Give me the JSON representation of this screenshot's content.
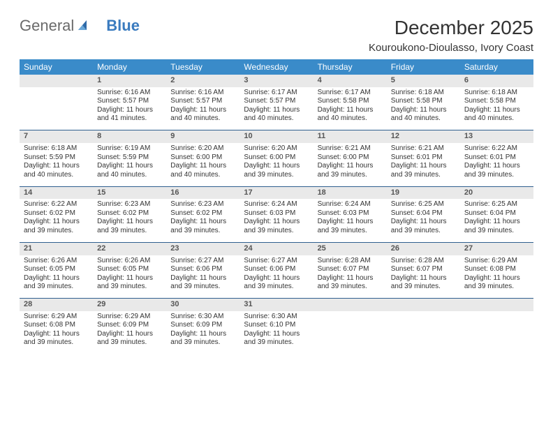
{
  "logo": {
    "text1": "General",
    "text2": "Blue"
  },
  "title": "December 2025",
  "location": "Kouroukono-Dioulasso, Ivory Coast",
  "colors": {
    "header_bg": "#3a8bc9",
    "header_text": "#ffffff",
    "daynum_bg": "#e9e9e9",
    "daynum_text": "#555555",
    "cell_text": "#333333",
    "rule": "#2f5f8f",
    "logo_gray": "#6a6a6a",
    "logo_blue": "#3a7bbf"
  },
  "typography": {
    "title_fontsize": 28,
    "location_fontsize": 15,
    "dayhead_fontsize": 12,
    "daynum_fontsize": 11,
    "detail_fontsize": 10
  },
  "day_headers": [
    "Sunday",
    "Monday",
    "Tuesday",
    "Wednesday",
    "Thursday",
    "Friday",
    "Saturday"
  ],
  "weeks": [
    [
      null,
      {
        "n": "1",
        "sunrise": "6:16 AM",
        "sunset": "5:57 PM",
        "daylight": "11 hours and 41 minutes."
      },
      {
        "n": "2",
        "sunrise": "6:16 AM",
        "sunset": "5:57 PM",
        "daylight": "11 hours and 40 minutes."
      },
      {
        "n": "3",
        "sunrise": "6:17 AM",
        "sunset": "5:57 PM",
        "daylight": "11 hours and 40 minutes."
      },
      {
        "n": "4",
        "sunrise": "6:17 AM",
        "sunset": "5:58 PM",
        "daylight": "11 hours and 40 minutes."
      },
      {
        "n": "5",
        "sunrise": "6:18 AM",
        "sunset": "5:58 PM",
        "daylight": "11 hours and 40 minutes."
      },
      {
        "n": "6",
        "sunrise": "6:18 AM",
        "sunset": "5:58 PM",
        "daylight": "11 hours and 40 minutes."
      }
    ],
    [
      {
        "n": "7",
        "sunrise": "6:18 AM",
        "sunset": "5:59 PM",
        "daylight": "11 hours and 40 minutes."
      },
      {
        "n": "8",
        "sunrise": "6:19 AM",
        "sunset": "5:59 PM",
        "daylight": "11 hours and 40 minutes."
      },
      {
        "n": "9",
        "sunrise": "6:20 AM",
        "sunset": "6:00 PM",
        "daylight": "11 hours and 40 minutes."
      },
      {
        "n": "10",
        "sunrise": "6:20 AM",
        "sunset": "6:00 PM",
        "daylight": "11 hours and 39 minutes."
      },
      {
        "n": "11",
        "sunrise": "6:21 AM",
        "sunset": "6:00 PM",
        "daylight": "11 hours and 39 minutes."
      },
      {
        "n": "12",
        "sunrise": "6:21 AM",
        "sunset": "6:01 PM",
        "daylight": "11 hours and 39 minutes."
      },
      {
        "n": "13",
        "sunrise": "6:22 AM",
        "sunset": "6:01 PM",
        "daylight": "11 hours and 39 minutes."
      }
    ],
    [
      {
        "n": "14",
        "sunrise": "6:22 AM",
        "sunset": "6:02 PM",
        "daylight": "11 hours and 39 minutes."
      },
      {
        "n": "15",
        "sunrise": "6:23 AM",
        "sunset": "6:02 PM",
        "daylight": "11 hours and 39 minutes."
      },
      {
        "n": "16",
        "sunrise": "6:23 AM",
        "sunset": "6:02 PM",
        "daylight": "11 hours and 39 minutes."
      },
      {
        "n": "17",
        "sunrise": "6:24 AM",
        "sunset": "6:03 PM",
        "daylight": "11 hours and 39 minutes."
      },
      {
        "n": "18",
        "sunrise": "6:24 AM",
        "sunset": "6:03 PM",
        "daylight": "11 hours and 39 minutes."
      },
      {
        "n": "19",
        "sunrise": "6:25 AM",
        "sunset": "6:04 PM",
        "daylight": "11 hours and 39 minutes."
      },
      {
        "n": "20",
        "sunrise": "6:25 AM",
        "sunset": "6:04 PM",
        "daylight": "11 hours and 39 minutes."
      }
    ],
    [
      {
        "n": "21",
        "sunrise": "6:26 AM",
        "sunset": "6:05 PM",
        "daylight": "11 hours and 39 minutes."
      },
      {
        "n": "22",
        "sunrise": "6:26 AM",
        "sunset": "6:05 PM",
        "daylight": "11 hours and 39 minutes."
      },
      {
        "n": "23",
        "sunrise": "6:27 AM",
        "sunset": "6:06 PM",
        "daylight": "11 hours and 39 minutes."
      },
      {
        "n": "24",
        "sunrise": "6:27 AM",
        "sunset": "6:06 PM",
        "daylight": "11 hours and 39 minutes."
      },
      {
        "n": "25",
        "sunrise": "6:28 AM",
        "sunset": "6:07 PM",
        "daylight": "11 hours and 39 minutes."
      },
      {
        "n": "26",
        "sunrise": "6:28 AM",
        "sunset": "6:07 PM",
        "daylight": "11 hours and 39 minutes."
      },
      {
        "n": "27",
        "sunrise": "6:29 AM",
        "sunset": "6:08 PM",
        "daylight": "11 hours and 39 minutes."
      }
    ],
    [
      {
        "n": "28",
        "sunrise": "6:29 AM",
        "sunset": "6:08 PM",
        "daylight": "11 hours and 39 minutes."
      },
      {
        "n": "29",
        "sunrise": "6:29 AM",
        "sunset": "6:09 PM",
        "daylight": "11 hours and 39 minutes."
      },
      {
        "n": "30",
        "sunrise": "6:30 AM",
        "sunset": "6:09 PM",
        "daylight": "11 hours and 39 minutes."
      },
      {
        "n": "31",
        "sunrise": "6:30 AM",
        "sunset": "6:10 PM",
        "daylight": "11 hours and 39 minutes."
      },
      null,
      null,
      null
    ]
  ],
  "labels": {
    "sunrise": "Sunrise:",
    "sunset": "Sunset:",
    "daylight": "Daylight:"
  }
}
